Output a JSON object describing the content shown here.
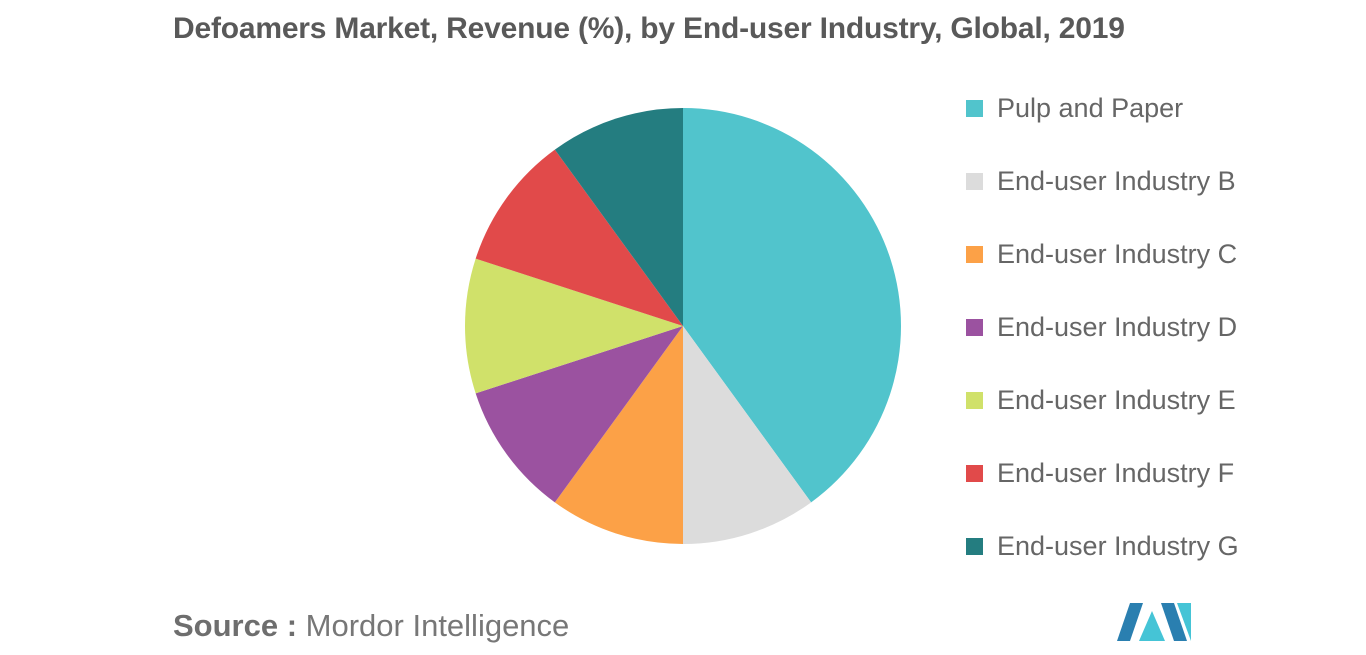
{
  "chart_data": {
    "type": "pie",
    "title": "Defoamers Market, Revenue (%), by End-user Industry, Global, 2019",
    "slices": [
      {
        "label": "Pulp and Paper",
        "value": 40,
        "color": "#51c4cc"
      },
      {
        "label": "End-user Industry B",
        "value": 10,
        "color": "#dcdcdc"
      },
      {
        "label": "End-user Industry C",
        "value": 10,
        "color": "#fca147"
      },
      {
        "label": "End-user Industry D",
        "value": 10,
        "color": "#9b52a0"
      },
      {
        "label": "End-user Industry E",
        "value": 10,
        "color": "#d0e16a"
      },
      {
        "label": "End-user Industry F",
        "value": 10,
        "color": "#e14a4a"
      },
      {
        "label": "End-user Industry G",
        "value": 10,
        "color": "#247d80"
      }
    ],
    "legend_position": "right"
  },
  "footer": {
    "source_label": "Source :",
    "source_value": "Mordor Intelligence"
  },
  "logo": {
    "icon": "mordor-intelligence-logo-icon",
    "colors": [
      "#2a7fb0",
      "#45c4d6"
    ]
  }
}
